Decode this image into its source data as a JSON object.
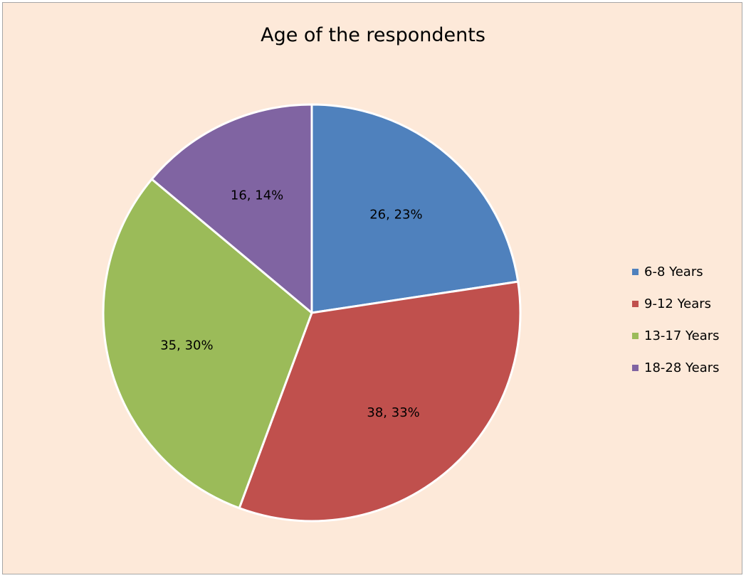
{
  "chart_data": {
    "type": "pie",
    "title": "Age of the respondents",
    "categories": [
      "6-8 Years",
      "9-12 Years",
      "13-17 Years",
      "18-28 Years"
    ],
    "values": [
      26,
      38,
      35,
      16
    ],
    "percentages": [
      "23%",
      "33%",
      "30%",
      "14%"
    ],
    "data_labels": [
      "26, 23%",
      "38, 33%",
      "35, 30%",
      "16, 14%"
    ],
    "colors": [
      "#4f81bd",
      "#c0504d",
      "#9bbb59",
      "#8064a2"
    ],
    "start_angle": "12 o'clock",
    "direction": "clockwise",
    "legend_position": "right",
    "background_color": "#fde9d9"
  }
}
